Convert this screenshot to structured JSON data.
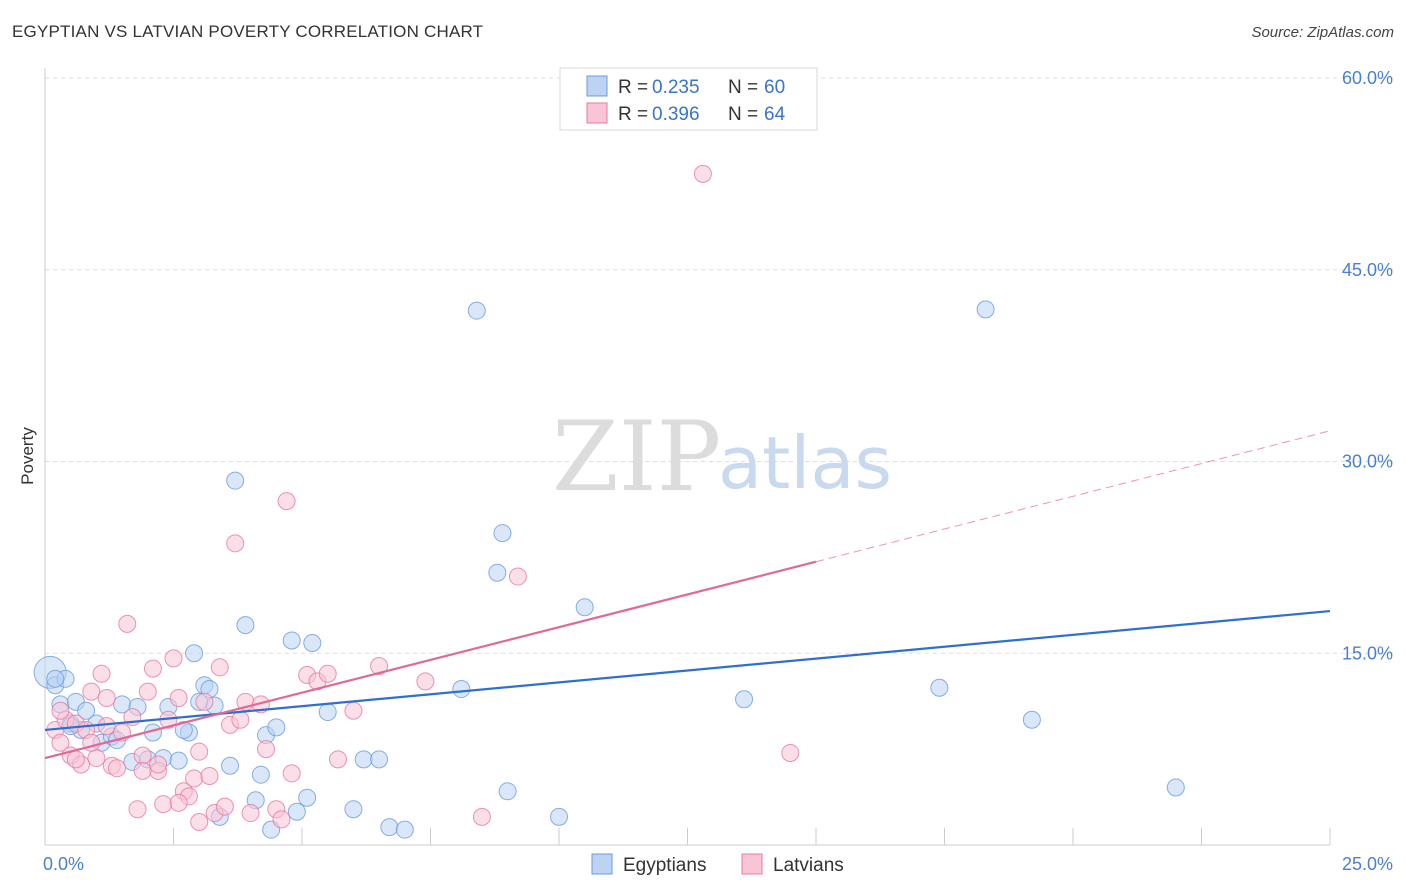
{
  "title": "EGYPTIAN VS LATVIAN POVERTY CORRELATION CHART",
  "source": "Source: ZipAtlas.com",
  "colors": {
    "egyptians": "#6a9be0",
    "egyptians_fill": "#bcd3f3",
    "latvians": "#e8789f",
    "latvians_fill": "#f8c5d6",
    "blue_line": "#2f6fd0",
    "pink_line": "#e06a96",
    "tick_text": "#4a7fd0"
  },
  "legend": {
    "rows": [
      {
        "series": "egyptians",
        "r_label": "R =",
        "r_value": "0.235",
        "n_label": "N =",
        "n_value": "60"
      },
      {
        "series": "latvians",
        "r_label": "R =",
        "r_value": "0.396",
        "n_label": "N =",
        "n_value": "64"
      }
    ]
  },
  "watermark": {
    "zip": "ZIP",
    "atlas": "atlas"
  },
  "chart_data": {
    "type": "scatter",
    "title": "EGYPTIAN VS LATVIAN POVERTY CORRELATION CHART",
    "xlabel": "",
    "ylabel": "Poverty",
    "xlim": [
      0,
      25
    ],
    "ylim": [
      0,
      60
    ],
    "x_ticks": [
      0,
      25
    ],
    "x_tick_labels": [
      "0.0%",
      "25.0%"
    ],
    "y_ticks": [
      15,
      30,
      45,
      60
    ],
    "y_tick_labels": [
      "15.0%",
      "30.0%",
      "45.0%",
      "60.0%"
    ],
    "grid": true,
    "series": [
      {
        "name": "Egyptians",
        "r": 0.235,
        "n": 60,
        "trend": {
          "x0": 0,
          "y0": 9.0,
          "x1": 25,
          "y1": 18.3,
          "dashed_from": null
        },
        "points": [
          [
            0.1,
            13.5
          ],
          [
            0.2,
            12.5
          ],
          [
            0.3,
            11.0
          ],
          [
            0.4,
            13.0
          ],
          [
            0.5,
            9.5
          ],
          [
            0.6,
            11.2
          ],
          [
            0.7,
            9.0
          ],
          [
            0.8,
            10.5
          ],
          [
            1.0,
            9.5
          ],
          [
            1.1,
            8.0
          ],
          [
            1.3,
            8.5
          ],
          [
            1.5,
            11.0
          ],
          [
            1.7,
            6.5
          ],
          [
            1.8,
            10.8
          ],
          [
            2.0,
            6.7
          ],
          [
            2.1,
            8.8
          ],
          [
            2.3,
            6.8
          ],
          [
            2.4,
            10.8
          ],
          [
            2.6,
            6.6
          ],
          [
            2.8,
            8.8
          ],
          [
            2.9,
            15.0
          ],
          [
            3.0,
            11.2
          ],
          [
            3.1,
            12.5
          ],
          [
            3.2,
            12.2
          ],
          [
            3.4,
            2.2
          ],
          [
            3.6,
            6.2
          ],
          [
            3.7,
            28.5
          ],
          [
            3.9,
            17.2
          ],
          [
            4.1,
            3.5
          ],
          [
            4.2,
            5.5
          ],
          [
            4.3,
            8.6
          ],
          [
            4.4,
            1.2
          ],
          [
            4.5,
            9.2
          ],
          [
            4.8,
            16.0
          ],
          [
            4.9,
            2.6
          ],
          [
            5.2,
            15.8
          ],
          [
            5.5,
            10.4
          ],
          [
            6.0,
            2.8
          ],
          [
            6.2,
            6.7
          ],
          [
            6.5,
            6.7
          ],
          [
            6.7,
            1.4
          ],
          [
            7.0,
            1.2
          ],
          [
            8.1,
            12.2
          ],
          [
            8.4,
            41.8
          ],
          [
            8.8,
            21.3
          ],
          [
            8.9,
            24.4
          ],
          [
            9.0,
            4.2
          ],
          [
            10.0,
            2.2
          ],
          [
            10.5,
            18.6
          ],
          [
            13.6,
            11.4
          ],
          [
            17.4,
            12.3
          ],
          [
            18.3,
            41.9
          ],
          [
            19.2,
            9.8
          ],
          [
            22.0,
            4.5
          ],
          [
            0.2,
            13.0
          ],
          [
            1.4,
            8.2
          ],
          [
            2.7,
            9.0
          ],
          [
            3.3,
            10.9
          ],
          [
            5.1,
            3.7
          ],
          [
            0.5,
            9.3
          ]
        ]
      },
      {
        "name": "Latvians",
        "r": 0.396,
        "n": 64,
        "trend": {
          "x0": 0,
          "y0": 6.8,
          "x1": 25,
          "y1": 32.4,
          "dashed_from": 15.0
        },
        "points": [
          [
            0.2,
            9.0
          ],
          [
            0.3,
            8.0
          ],
          [
            0.4,
            9.8
          ],
          [
            0.5,
            7.0
          ],
          [
            0.6,
            9.5
          ],
          [
            0.7,
            6.3
          ],
          [
            0.8,
            9.0
          ],
          [
            0.9,
            12.0
          ],
          [
            1.0,
            6.8
          ],
          [
            1.1,
            13.4
          ],
          [
            1.2,
            9.3
          ],
          [
            1.3,
            6.2
          ],
          [
            1.4,
            6.0
          ],
          [
            1.5,
            8.8
          ],
          [
            1.6,
            17.3
          ],
          [
            1.7,
            10.0
          ],
          [
            1.8,
            2.8
          ],
          [
            1.9,
            7.0
          ],
          [
            2.0,
            12.0
          ],
          [
            2.1,
            13.8
          ],
          [
            2.2,
            5.8
          ],
          [
            2.3,
            3.2
          ],
          [
            2.4,
            9.8
          ],
          [
            2.5,
            14.6
          ],
          [
            2.6,
            11.5
          ],
          [
            2.7,
            4.2
          ],
          [
            2.8,
            3.8
          ],
          [
            2.9,
            5.2
          ],
          [
            3.0,
            7.3
          ],
          [
            3.1,
            11.2
          ],
          [
            3.2,
            5.4
          ],
          [
            3.3,
            2.5
          ],
          [
            3.4,
            13.9
          ],
          [
            3.5,
            3.0
          ],
          [
            3.6,
            9.4
          ],
          [
            3.7,
            23.6
          ],
          [
            3.8,
            9.8
          ],
          [
            3.9,
            11.2
          ],
          [
            4.0,
            2.5
          ],
          [
            4.2,
            11.0
          ],
          [
            4.3,
            7.5
          ],
          [
            4.5,
            2.8
          ],
          [
            4.7,
            26.9
          ],
          [
            4.8,
            5.6
          ],
          [
            5.1,
            13.3
          ],
          [
            5.3,
            12.8
          ],
          [
            5.5,
            13.4
          ],
          [
            5.7,
            6.7
          ],
          [
            6.0,
            10.5
          ],
          [
            6.5,
            14.0
          ],
          [
            7.4,
            12.8
          ],
          [
            8.5,
            2.2
          ],
          [
            9.2,
            21.0
          ],
          [
            12.8,
            52.5
          ],
          [
            14.5,
            7.2
          ],
          [
            0.3,
            10.5
          ],
          [
            0.6,
            6.7
          ],
          [
            1.2,
            11.5
          ],
          [
            1.9,
            5.8
          ],
          [
            2.6,
            3.3
          ],
          [
            3.0,
            1.8
          ],
          [
            0.9,
            8.0
          ],
          [
            4.6,
            2.0
          ],
          [
            2.2,
            6.3
          ]
        ]
      }
    ]
  },
  "bottom_legend": [
    {
      "series": "egyptians",
      "label": "Egyptians"
    },
    {
      "series": "latvians",
      "label": "Latvians"
    }
  ]
}
